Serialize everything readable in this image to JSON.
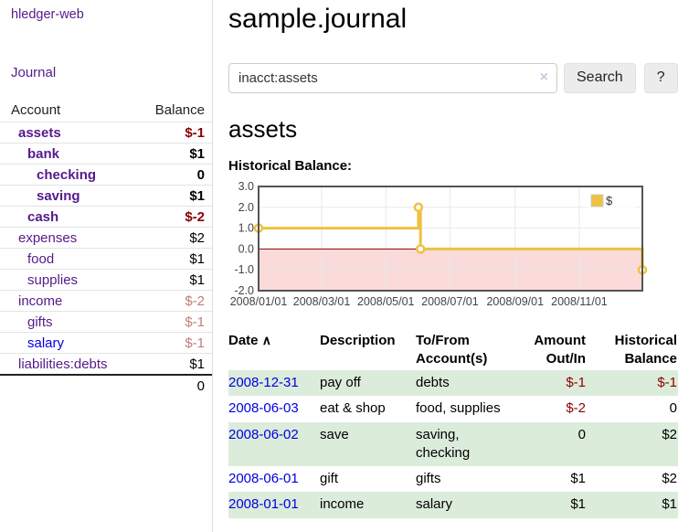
{
  "app": {
    "brand": "hledger-web"
  },
  "colors": {
    "visited_link_purple": "#551a8b",
    "link_blue": "#0000e0",
    "negative_red": "#8b0000",
    "negative_light_red": "#c17d7d",
    "row_stripe_green": "#dcecdb"
  },
  "sidebar": {
    "nav": {
      "journal_label": "Journal"
    },
    "accounts_table": {
      "headers": {
        "account": "Account",
        "balance": "Balance"
      },
      "rows": [
        {
          "name": "assets",
          "indent": 1,
          "bold": true,
          "link_color": "purple",
          "balance": "$-1",
          "balance_style": "neg-strong"
        },
        {
          "name": "bank",
          "indent": 2,
          "bold": true,
          "link_color": "purple",
          "balance": "$1",
          "balance_style": "normal"
        },
        {
          "name": "checking",
          "indent": 3,
          "bold": true,
          "link_color": "purple",
          "balance": "0",
          "balance_style": "normal"
        },
        {
          "name": "saving",
          "indent": 3,
          "bold": true,
          "link_color": "purple",
          "balance": "$1",
          "balance_style": "normal"
        },
        {
          "name": "cash",
          "indent": 2,
          "bold": true,
          "link_color": "purple",
          "balance": "$-2",
          "balance_style": "neg-strong"
        },
        {
          "name": "expenses",
          "indent": 1,
          "bold": false,
          "link_color": "purple",
          "balance": "$2",
          "balance_style": "normal"
        },
        {
          "name": "food",
          "indent": 2,
          "bold": false,
          "link_color": "purple",
          "balance": "$1",
          "balance_style": "normal"
        },
        {
          "name": "supplies",
          "indent": 2,
          "bold": false,
          "link_color": "purple",
          "balance": "$1",
          "balance_style": "normal"
        },
        {
          "name": "income",
          "indent": 1,
          "bold": false,
          "link_color": "purple",
          "balance": "$-2",
          "balance_style": "neg-light"
        },
        {
          "name": "gifts",
          "indent": 2,
          "bold": false,
          "link_color": "purple",
          "balance": "$-1",
          "balance_style": "neg-light"
        },
        {
          "name": "salary",
          "indent": 2,
          "bold": false,
          "link_color": "blue",
          "balance": "$-1",
          "balance_style": "neg-light"
        },
        {
          "name": "liabilities:debts",
          "indent": 1,
          "bold": false,
          "link_color": "purple",
          "balance": "$1",
          "balance_style": "normal"
        }
      ],
      "total": "0"
    }
  },
  "header": {
    "title": "sample.journal"
  },
  "search": {
    "value": "inacct:assets",
    "clear_icon": "×",
    "button_label": "Search",
    "help_label": "?"
  },
  "account_page": {
    "title": "assets",
    "chart_label": "Historical Balance:"
  },
  "chart_data": {
    "type": "line",
    "title": "Historical Balance",
    "step": true,
    "x_range": [
      "2008-01-01",
      "2008-12-31"
    ],
    "ylim": [
      -2,
      3
    ],
    "y_ticks": [
      3.0,
      2.0,
      1.0,
      0.0,
      -1.0,
      -2.0
    ],
    "x_ticks": [
      {
        "date": "2008-01-01",
        "label": "2008/01/01"
      },
      {
        "date": "2008-03-01",
        "label": "2008/03/01"
      },
      {
        "date": "2008-05-01",
        "label": "2008/05/01"
      },
      {
        "date": "2008-07-01",
        "label": "2008/07/01"
      },
      {
        "date": "2008-09-01",
        "label": "2008/09/01"
      },
      {
        "date": "2008-11-01",
        "label": "2008/11/01"
      }
    ],
    "series": [
      {
        "name": "$",
        "color": "#EDC240",
        "points": [
          {
            "date": "2008-01-01",
            "value": 1
          },
          {
            "date": "2008-06-01",
            "value": 2
          },
          {
            "date": "2008-06-03",
            "value": 0
          },
          {
            "date": "2008-12-31",
            "value": -1
          }
        ]
      }
    ],
    "grid": true,
    "legend_position": "top-right",
    "negative_region_color": "#fbdada",
    "zero_line_color": "#8b0000",
    "plot_border_color": "#545454",
    "gridline_color": "#e8e8e8"
  },
  "register": {
    "headers": [
      "Date",
      "Description",
      "To/From Account(s)",
      "Amount Out/In",
      "Historical Balance"
    ],
    "sort_indicator": "∧",
    "rows": [
      {
        "date": "2008-12-31",
        "description": "pay off",
        "accounts": "debts",
        "amount": "$-1",
        "amount_neg": true,
        "balance": "$-1",
        "balance_neg": true
      },
      {
        "date": "2008-06-03",
        "description": "eat & shop",
        "accounts": "food, supplies",
        "amount": "$-2",
        "amount_neg": true,
        "balance": "0",
        "balance_neg": false
      },
      {
        "date": "2008-06-02",
        "description": "save",
        "accounts": "saving, checking",
        "amount": "0",
        "amount_neg": false,
        "balance": "$2",
        "balance_neg": false
      },
      {
        "date": "2008-06-01",
        "description": "gift",
        "accounts": "gifts",
        "amount": "$1",
        "amount_neg": false,
        "balance": "$2",
        "balance_neg": false
      },
      {
        "date": "2008-01-01",
        "description": "income",
        "accounts": "salary",
        "amount": "$1",
        "amount_neg": false,
        "balance": "$1",
        "balance_neg": false
      }
    ]
  }
}
